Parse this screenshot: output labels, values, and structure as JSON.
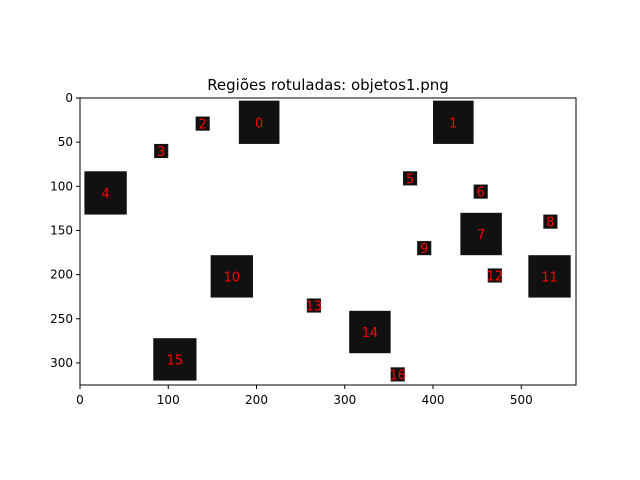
{
  "chart_data": {
    "type": "heatmap",
    "title": "Regiões rotuladas: objetos1.png",
    "xlabel": "",
    "ylabel": "",
    "xlim": [
      0,
      562
    ],
    "ylim": [
      325,
      0
    ],
    "x_ticks": [
      0,
      100,
      200,
      300,
      400,
      500
    ],
    "y_ticks": [
      0,
      50,
      100,
      150,
      200,
      250,
      300
    ],
    "grid": false,
    "colors": {
      "background": "#ffffff",
      "object": "#111111",
      "label": "#ff0000"
    },
    "regions": [
      {
        "label": "0",
        "x": [
          180,
          226
        ],
        "y": [
          3,
          52
        ]
      },
      {
        "label": "1",
        "x": [
          400,
          446
        ],
        "y": [
          3,
          52
        ]
      },
      {
        "label": "2",
        "x": [
          131,
          147
        ],
        "y": [
          21,
          37
        ]
      },
      {
        "label": "3",
        "x": [
          84,
          100
        ],
        "y": [
          52,
          68
        ]
      },
      {
        "label": "4",
        "x": [
          5,
          53
        ],
        "y": [
          83,
          132
        ]
      },
      {
        "label": "5",
        "x": [
          366,
          382
        ],
        "y": [
          83,
          99
        ]
      },
      {
        "label": "6",
        "x": [
          446,
          462
        ],
        "y": [
          98,
          114
        ]
      },
      {
        "label": "7",
        "x": [
          431,
          478
        ],
        "y": [
          130,
          178
        ]
      },
      {
        "label": "8",
        "x": [
          525,
          541
        ],
        "y": [
          132,
          148
        ]
      },
      {
        "label": "9",
        "x": [
          382,
          398
        ],
        "y": [
          162,
          178
        ]
      },
      {
        "label": "10",
        "x": [
          148,
          196
        ],
        "y": [
          178,
          226
        ]
      },
      {
        "label": "11",
        "x": [
          508,
          556
        ],
        "y": [
          178,
          226
        ]
      },
      {
        "label": "12",
        "x": [
          462,
          478
        ],
        "y": [
          193,
          209
        ]
      },
      {
        "label": "13",
        "x": [
          257,
          273
        ],
        "y": [
          227,
          243
        ]
      },
      {
        "label": "14",
        "x": [
          305,
          352
        ],
        "y": [
          241,
          289
        ]
      },
      {
        "label": "15",
        "x": [
          83,
          132
        ],
        "y": [
          272,
          320
        ]
      },
      {
        "label": "16",
        "x": [
          352,
          368
        ],
        "y": [
          305,
          321
        ]
      }
    ]
  }
}
